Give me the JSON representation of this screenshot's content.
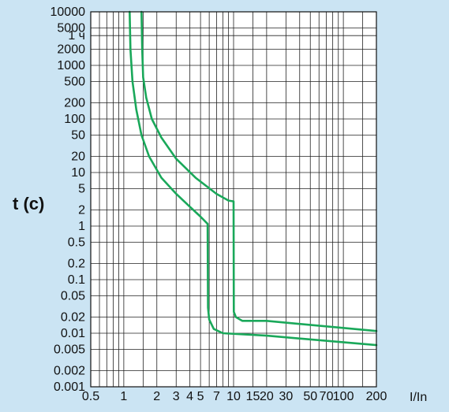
{
  "chart_data": {
    "type": "line",
    "title": "",
    "xlabel": "I/In",
    "ylabel": "t (c)",
    "x_scale": "log",
    "y_scale": "log",
    "xlim": [
      0.5,
      200
    ],
    "ylim": [
      0.001,
      10000
    ],
    "grid": true,
    "background_color": "#cbe4f3",
    "plot_background_color": "#ffffff",
    "curve_color": "#1aa85a",
    "x_ticks": [
      {
        "value": 0.5,
        "label": "0.5"
      },
      {
        "value": 1,
        "label": "1"
      },
      {
        "value": 2,
        "label": "2"
      },
      {
        "value": 3,
        "label": "3"
      },
      {
        "value": 4,
        "label": "4"
      },
      {
        "value": 5,
        "label": "5"
      },
      {
        "value": 7,
        "label": "7"
      },
      {
        "value": 10,
        "label": "10"
      },
      {
        "value": 15,
        "label": "15"
      },
      {
        "value": 20,
        "label": "20"
      },
      {
        "value": 30,
        "label": "30"
      },
      {
        "value": 50,
        "label": "50"
      },
      {
        "value": 70,
        "label": "70"
      },
      {
        "value": 100,
        "label": "100"
      },
      {
        "value": 200,
        "label": "200"
      }
    ],
    "y_ticks": [
      {
        "value": 10000,
        "label": "10000"
      },
      {
        "value": 5000,
        "label": "5000"
      },
      {
        "value": 3600,
        "label": "1 ч"
      },
      {
        "value": 2000,
        "label": "2000"
      },
      {
        "value": 1000,
        "label": "1000"
      },
      {
        "value": 500,
        "label": "500"
      },
      {
        "value": 200,
        "label": "200"
      },
      {
        "value": 100,
        "label": "100"
      },
      {
        "value": 50,
        "label": "50"
      },
      {
        "value": 20,
        "label": "20"
      },
      {
        "value": 10,
        "label": "10"
      },
      {
        "value": 5,
        "label": "5"
      },
      {
        "value": 2,
        "label": "2"
      },
      {
        "value": 1,
        "label": "1"
      },
      {
        "value": 0.5,
        "label": "0.5"
      },
      {
        "value": 0.2,
        "label": "0.2"
      },
      {
        "value": 0.1,
        "label": "0.1"
      },
      {
        "value": 0.05,
        "label": "0.05"
      },
      {
        "value": 0.02,
        "label": "0.02"
      },
      {
        "value": 0.01,
        "label": "0.01"
      },
      {
        "value": 0.005,
        "label": "0.005"
      },
      {
        "value": 0.002,
        "label": "0.002"
      },
      {
        "value": 0.001,
        "label": "0.001"
      }
    ],
    "x_grid": [
      0.5,
      0.6,
      0.7,
      0.8,
      0.9,
      1,
      1.5,
      2,
      3,
      4,
      5,
      6,
      7,
      8,
      9,
      10,
      15,
      20,
      30,
      40,
      50,
      60,
      70,
      80,
      90,
      100,
      150,
      200
    ],
    "y_grid": [
      0.001,
      0.002,
      0.005,
      0.01,
      0.02,
      0.05,
      0.1,
      0.2,
      0.5,
      1,
      2,
      5,
      10,
      20,
      50,
      100,
      200,
      500,
      1000,
      2000,
      3600,
      5000,
      10000
    ],
    "series": [
      {
        "points": [
          [
            1.13,
            10000
          ],
          [
            1.15,
            2000
          ],
          [
            1.2,
            500
          ],
          [
            1.3,
            150
          ],
          [
            1.45,
            50
          ],
          [
            1.7,
            20
          ],
          [
            2.2,
            8
          ],
          [
            3.0,
            4
          ],
          [
            4.0,
            2.3
          ],
          [
            5.0,
            1.5
          ],
          [
            5.8,
            1.1
          ],
          [
            5.85,
            0.03
          ],
          [
            6.0,
            0.018
          ],
          [
            6.6,
            0.012
          ],
          [
            8.0,
            0.01
          ],
          [
            20,
            0.009
          ],
          [
            200,
            0.006
          ]
        ]
      },
      {
        "points": [
          [
            1.45,
            10000
          ],
          [
            1.47,
            2000
          ],
          [
            1.5,
            600
          ],
          [
            1.6,
            250
          ],
          [
            1.8,
            100
          ],
          [
            2.2,
            45
          ],
          [
            3.0,
            18
          ],
          [
            4.5,
            8
          ],
          [
            7.0,
            4
          ],
          [
            9.0,
            3.0
          ],
          [
            10.0,
            2.9
          ],
          [
            10.05,
            0.025
          ],
          [
            10.5,
            0.02
          ],
          [
            12,
            0.017
          ],
          [
            20,
            0.017
          ],
          [
            200,
            0.011
          ]
        ]
      }
    ]
  }
}
